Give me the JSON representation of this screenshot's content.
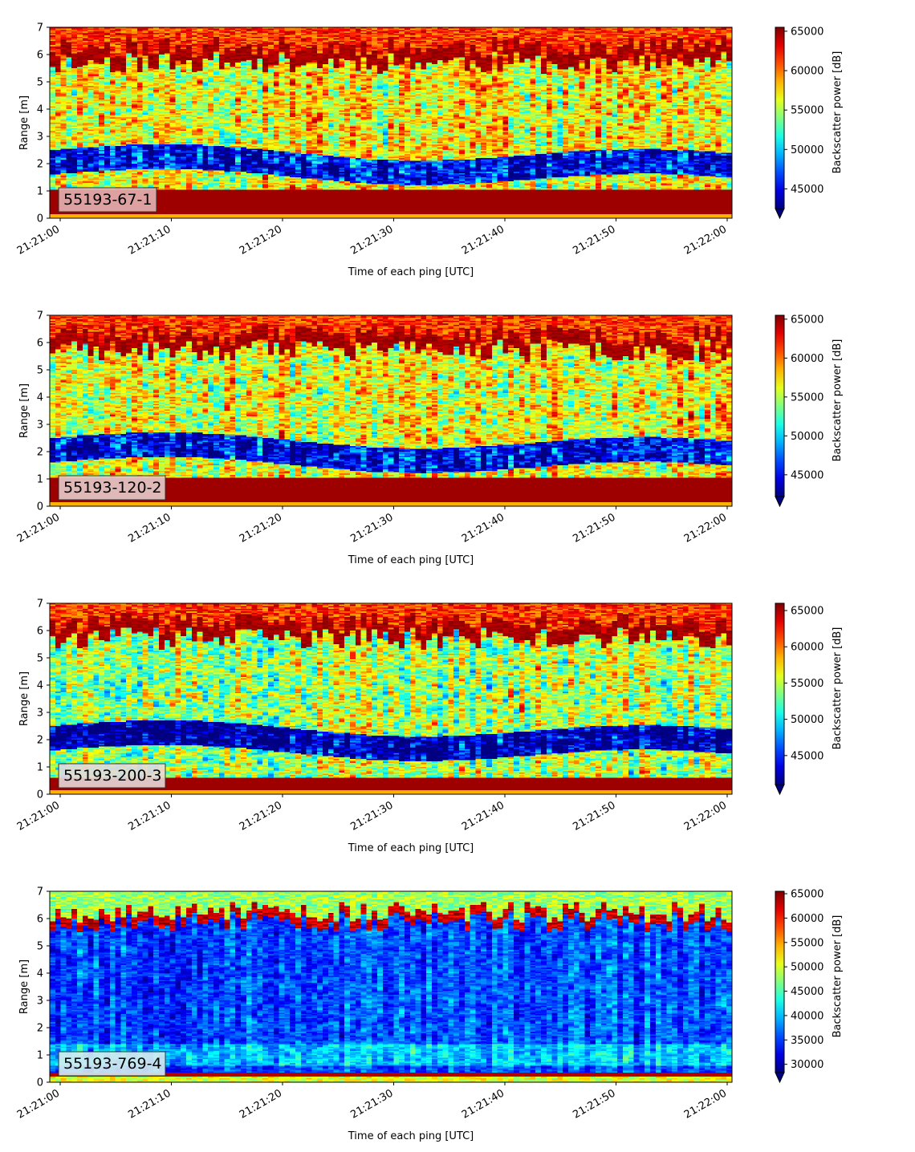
{
  "figure": {
    "colormap": "jet",
    "panels_count": 4
  },
  "chart_data": [
    {
      "type": "heatmap",
      "annotation": "55193-67-1",
      "annotation_bg": "#e3b3b3",
      "xlabel": "Time of each ping [UTC]",
      "ylabel": "Range [m]",
      "xticks": [
        "21:21:00",
        "21:21:10",
        "21:21:20",
        "21:21:30",
        "21:21:40",
        "21:21:50",
        "21:22:00"
      ],
      "yticks": [
        0,
        1,
        2,
        3,
        4,
        5,
        6,
        7
      ],
      "ylim": [
        0,
        7
      ],
      "colorbar": {
        "label": "Backscatter power [dB]",
        "ticks": [
          45000,
          50000,
          55000,
          60000,
          65000
        ],
        "range": [
          42500,
          65500
        ],
        "extend": "min"
      },
      "x_range_seconds": [
        -1,
        61
      ],
      "y_range_m": [
        0,
        7
      ],
      "profile": "high",
      "seed": 11
    },
    {
      "type": "heatmap",
      "annotation": "55193-120-2",
      "annotation_bg": "#e6cccc",
      "xlabel": "Time of each ping [UTC]",
      "ylabel": "Range [m]",
      "xticks": [
        "21:21:00",
        "21:21:10",
        "21:21:20",
        "21:21:30",
        "21:21:40",
        "21:21:50",
        "21:22:00"
      ],
      "yticks": [
        0,
        1,
        2,
        3,
        4,
        5,
        6,
        7
      ],
      "ylim": [
        0,
        7
      ],
      "colorbar": {
        "label": "Backscatter power [dB]",
        "ticks": [
          45000,
          50000,
          55000,
          60000,
          65000
        ],
        "range": [
          42200,
          65500
        ],
        "extend": "min"
      },
      "profile": "high",
      "seed": 23
    },
    {
      "type": "heatmap",
      "annotation": "55193-200-3",
      "annotation_bg": "#e6d9d9",
      "xlabel": "Time of each ping [UTC]",
      "ylabel": "Range [m]",
      "xticks": [
        "21:21:00",
        "21:21:10",
        "21:21:20",
        "21:21:30",
        "21:21:40",
        "21:21:50",
        "21:22:00"
      ],
      "yticks": [
        0,
        1,
        2,
        3,
        4,
        5,
        6,
        7
      ],
      "ylim": [
        0,
        7
      ],
      "colorbar": {
        "label": "Backscatter power [dB]",
        "ticks": [
          45000,
          50000,
          55000,
          60000,
          65000
        ],
        "range": [
          41000,
          66000
        ],
        "extend": "min"
      },
      "profile": "mid",
      "seed": 37
    },
    {
      "type": "heatmap",
      "annotation": "55193-769-4",
      "annotation_bg": "#d6ecee",
      "xlabel": "Time of each ping [UTC]",
      "ylabel": "Range [m]",
      "xticks": [
        "21:21:00",
        "21:21:10",
        "21:21:20",
        "21:21:30",
        "21:21:40",
        "21:21:50",
        "21:22:00"
      ],
      "yticks": [
        0,
        1,
        2,
        3,
        4,
        5,
        6,
        7
      ],
      "ylim": [
        0,
        7
      ],
      "colorbar": {
        "label": "Backscatter power [dB]",
        "ticks": [
          30000,
          35000,
          40000,
          45000,
          50000,
          55000,
          60000,
          65000
        ],
        "range": [
          28300,
          65500
        ],
        "extend": "min"
      },
      "profile": "low",
      "seed": 53
    }
  ]
}
